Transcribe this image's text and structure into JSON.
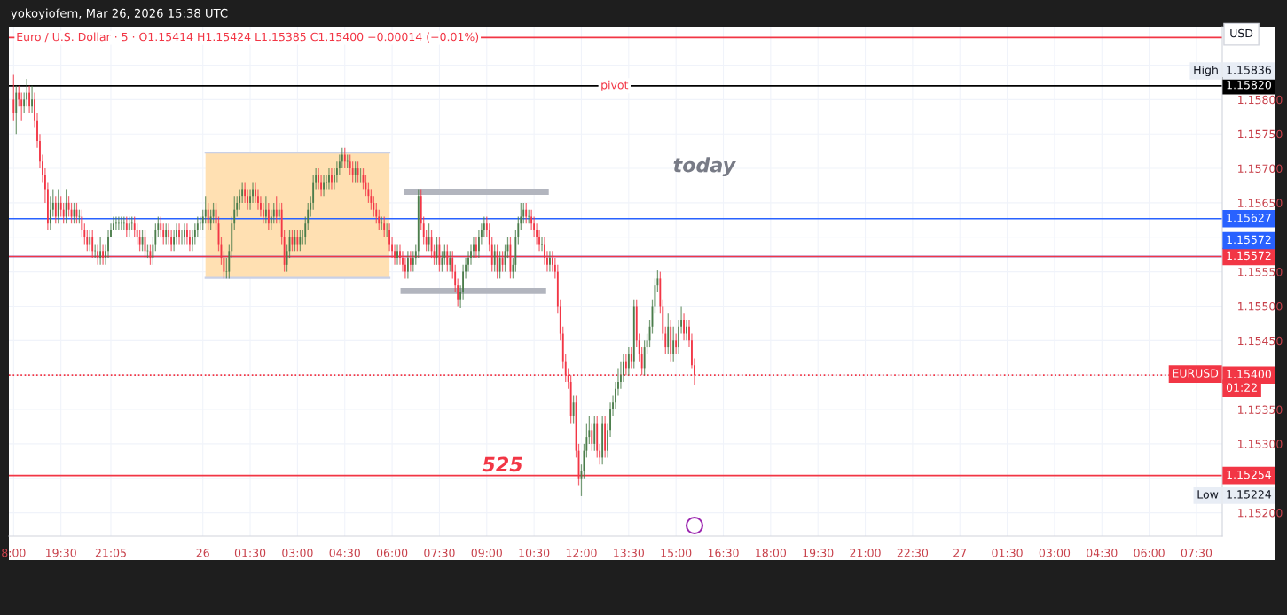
{
  "chart_data": {
    "type": "candlestick",
    "title": "Euro / U.S. Dollar · 5 · O1.15414 H1.15424 L1.15385 C1.15400 −0.00014 (−0.01%)",
    "subtitle": "yokoyiofem, Mar 26, 2026 15:38 UTC",
    "x": [
      "2026-03-25T18:00",
      "2026-03-25T18:05",
      "2026-03-25T18:10",
      "2026-03-25T18:15",
      "2026-03-25T18:20",
      "2026-03-25T18:25",
      "2026-03-25T18:30",
      "2026-03-25T18:35",
      "2026-03-25T18:40",
      "2026-03-25T18:45",
      "2026-03-25T18:50",
      "2026-03-25T18:55",
      "2026-03-25T19:00",
      "2026-03-25T19:05",
      "2026-03-25T19:10",
      "2026-03-25T19:15",
      "2026-03-25T19:20",
      "2026-03-25T19:25",
      "2026-03-25T19:30",
      "2026-03-25T19:35",
      "2026-03-25T19:40",
      "2026-03-25T19:45",
      "2026-03-25T19:50",
      "2026-03-25T19:55",
      "2026-03-25T20:00",
      "2026-03-25T20:05",
      "2026-03-25T20:10",
      "2026-03-25T20:15",
      "2026-03-25T20:20",
      "2026-03-25T20:25",
      "2026-03-25T20:30",
      "2026-03-25T20:35",
      "2026-03-25T20:40",
      "2026-03-25T20:45",
      "2026-03-25T20:50",
      "2026-03-25T20:55",
      "2026-03-25T21:00",
      "2026-03-25T21:05",
      "2026-03-25T21:10",
      "2026-03-25T21:15",
      "2026-03-25T21:20",
      "2026-03-25T21:25",
      "2026-03-25T21:30",
      "2026-03-25T21:35",
      "2026-03-25T21:40",
      "2026-03-25T21:45",
      "2026-03-25T21:50",
      "2026-03-25T21:55",
      "2026-03-25T22:00",
      "2026-03-25T22:05",
      "2026-03-25T22:10",
      "2026-03-25T22:15",
      "2026-03-25T22:20",
      "2026-03-25T22:25",
      "2026-03-25T22:30",
      "2026-03-25T22:35",
      "2026-03-25T22:40",
      "2026-03-25T22:45",
      "2026-03-25T22:50",
      "2026-03-25T22:55",
      "2026-03-25T23:00",
      "2026-03-25T23:05",
      "2026-03-25T23:10",
      "2026-03-25T23:15",
      "2026-03-25T23:20",
      "2026-03-25T23:25",
      "2026-03-25T23:30",
      "2026-03-25T23:35",
      "2026-03-25T23:40",
      "2026-03-25T23:45",
      "2026-03-25T23:50",
      "2026-03-25T23:55",
      "2026-03-26T00:00",
      "2026-03-26T00:05",
      "2026-03-26T00:10",
      "2026-03-26T00:15",
      "2026-03-26T00:20",
      "2026-03-26T00:25",
      "2026-03-26T00:30",
      "2026-03-26T00:35",
      "2026-03-26T00:40",
      "2026-03-26T00:45",
      "2026-03-26T00:50",
      "2026-03-26T00:55",
      "2026-03-26T01:00",
      "2026-03-26T01:05",
      "2026-03-26T01:10",
      "2026-03-26T01:15",
      "2026-03-26T01:20",
      "2026-03-26T01:25",
      "2026-03-26T01:30",
      "2026-03-26T01:35",
      "2026-03-26T01:40",
      "2026-03-26T01:45",
      "2026-03-26T01:50",
      "2026-03-26T01:55",
      "2026-03-26T02:00",
      "2026-03-26T02:05",
      "2026-03-26T02:10",
      "2026-03-26T02:15",
      "2026-03-26T02:20",
      "2026-03-26T02:25",
      "2026-03-26T02:30",
      "2026-03-26T02:35",
      "2026-03-26T02:40",
      "2026-03-26T02:45",
      "2026-03-26T02:50",
      "2026-03-26T02:55",
      "2026-03-26T03:00",
      "2026-03-26T03:05",
      "2026-03-26T03:10",
      "2026-03-26T03:15",
      "2026-03-26T03:20",
      "2026-03-26T03:25",
      "2026-03-26T03:30",
      "2026-03-26T03:35",
      "2026-03-26T03:40",
      "2026-03-26T03:45",
      "2026-03-26T03:50",
      "2026-03-26T03:55",
      "2026-03-26T04:00",
      "2026-03-26T04:05",
      "2026-03-26T04:10",
      "2026-03-26T04:15",
      "2026-03-26T04:20",
      "2026-03-26T04:25",
      "2026-03-26T04:30",
      "2026-03-26T04:35",
      "2026-03-26T04:40",
      "2026-03-26T04:45",
      "2026-03-26T04:50",
      "2026-03-26T04:55",
      "2026-03-26T05:00",
      "2026-03-26T05:05",
      "2026-03-26T05:10",
      "2026-03-26T05:15",
      "2026-03-26T05:20",
      "2026-03-26T05:25",
      "2026-03-26T05:30",
      "2026-03-26T05:35",
      "2026-03-26T05:40",
      "2026-03-26T05:45",
      "2026-03-26T05:50",
      "2026-03-26T05:55",
      "2026-03-26T06:00",
      "2026-03-26T06:05",
      "2026-03-26T06:10",
      "2026-03-26T06:15",
      "2026-03-26T06:20",
      "2026-03-26T06:25",
      "2026-03-26T06:30",
      "2026-03-26T06:35",
      "2026-03-26T06:40",
      "2026-03-26T06:45",
      "2026-03-26T06:50",
      "2026-03-26T06:55",
      "2026-03-26T07:00",
      "2026-03-26T07:05",
      "2026-03-26T07:10",
      "2026-03-26T07:15",
      "2026-03-26T07:20",
      "2026-03-26T07:25",
      "2026-03-26T07:30",
      "2026-03-26T07:35",
      "2026-03-26T07:40",
      "2026-03-26T07:45",
      "2026-03-26T07:50",
      "2026-03-26T07:55",
      "2026-03-26T08:00",
      "2026-03-26T08:05",
      "2026-03-26T08:10",
      "2026-03-26T08:15",
      "2026-03-26T08:20",
      "2026-03-26T08:25",
      "2026-03-26T08:30",
      "2026-03-26T08:35",
      "2026-03-26T08:40",
      "2026-03-26T08:45",
      "2026-03-26T08:50",
      "2026-03-26T08:55",
      "2026-03-26T09:00",
      "2026-03-26T09:05",
      "2026-03-26T09:10",
      "2026-03-26T09:15",
      "2026-03-26T09:20",
      "2026-03-26T09:25",
      "2026-03-26T09:30",
      "2026-03-26T09:35",
      "2026-03-26T09:40",
      "2026-03-26T09:45",
      "2026-03-26T09:50",
      "2026-03-26T09:55",
      "2026-03-26T10:00",
      "2026-03-26T10:05",
      "2026-03-26T10:10",
      "2026-03-26T10:15",
      "2026-03-26T10:20",
      "2026-03-26T10:25",
      "2026-03-26T10:30",
      "2026-03-26T10:35",
      "2026-03-26T10:40",
      "2026-03-26T10:45",
      "2026-03-26T10:50",
      "2026-03-26T10:55",
      "2026-03-26T11:00",
      "2026-03-26T11:05",
      "2026-03-26T11:10",
      "2026-03-26T11:15",
      "2026-03-26T11:20",
      "2026-03-26T11:25",
      "2026-03-26T11:30",
      "2026-03-26T11:35",
      "2026-03-26T11:40",
      "2026-03-26T11:45",
      "2026-03-26T11:50",
      "2026-03-26T11:55",
      "2026-03-26T12:00",
      "2026-03-26T12:05",
      "2026-03-26T12:10",
      "2026-03-26T12:15",
      "2026-03-26T12:20",
      "2026-03-26T12:25",
      "2026-03-26T12:30",
      "2026-03-26T12:35",
      "2026-03-26T12:40",
      "2026-03-26T12:45",
      "2026-03-26T12:50",
      "2026-03-26T12:55",
      "2026-03-26T13:00",
      "2026-03-26T13:05",
      "2026-03-26T13:10",
      "2026-03-26T13:15",
      "2026-03-26T13:20",
      "2026-03-26T13:25",
      "2026-03-26T13:30",
      "2026-03-26T13:35",
      "2026-03-26T13:40",
      "2026-03-26T13:45",
      "2026-03-26T13:50",
      "2026-03-26T13:55",
      "2026-03-26T14:00",
      "2026-03-26T14:05",
      "2026-03-26T14:10",
      "2026-03-26T14:15",
      "2026-03-26T14:20",
      "2026-03-26T14:25",
      "2026-03-26T14:30",
      "2026-03-26T14:35",
      "2026-03-26T14:40",
      "2026-03-26T14:45",
      "2026-03-26T14:50",
      "2026-03-26T14:55",
      "2026-03-26T15:00",
      "2026-03-26T15:05",
      "2026-03-26T15:10",
      "2026-03-26T15:15",
      "2026-03-26T15:20",
      "2026-03-26T15:25",
      "2026-03-26T15:30",
      "2026-03-26T15:35"
    ],
    "ohlc": [
      [
        1.158,
        1.15836,
        1.1577,
        1.1578
      ],
      [
        1.1578,
        1.1582,
        1.1575,
        1.1581
      ],
      [
        1.1581,
        1.1582,
        1.1579,
        1.158
      ],
      [
        1.158,
        1.1581,
        1.1577,
        1.1579
      ],
      [
        1.1579,
        1.1581,
        1.1578,
        1.158
      ],
      [
        1.158,
        1.1583,
        1.1579,
        1.1581
      ],
      [
        1.1581,
        1.1582,
        1.1578,
        1.1579
      ],
      [
        1.1579,
        1.1582,
        1.1578,
        1.158
      ],
      [
        1.158,
        1.1581,
        1.1576,
        1.1577
      ],
      [
        1.1577,
        1.1578,
        1.1573,
        1.1574
      ],
      [
        1.1574,
        1.1575,
        1.157,
        1.1571
      ],
      [
        1.1571,
        1.1572,
        1.1568,
        1.1569
      ],
      [
        1.1569,
        1.157,
        1.1565,
        1.1567
      ],
      [
        1.1567,
        1.1568,
        1.1561,
        1.1562
      ],
      [
        1.1562,
        1.1566,
        1.1561,
        1.1564
      ],
      [
        1.1564,
        1.1567,
        1.1563,
        1.1565
      ],
      [
        1.1565,
        1.1566,
        1.1562,
        1.1563
      ],
      [
        1.1563,
        1.1567,
        1.1562,
        1.1565
      ],
      [
        1.1565,
        1.1566,
        1.1563,
        1.1564
      ],
      [
        1.1564,
        1.1565,
        1.1562,
        1.1563
      ],
      [
        1.1563,
        1.1567,
        1.1562,
        1.1565
      ],
      [
        1.1565,
        1.1566,
        1.1563,
        1.1564
      ],
      [
        1.1564,
        1.1565,
        1.1562,
        1.1563
      ],
      [
        1.1563,
        1.1565,
        1.1562,
        1.1564
      ],
      [
        1.1564,
        1.1565,
        1.1562,
        1.1563
      ],
      [
        1.1563,
        1.1564,
        1.1562,
        1.1563
      ],
      [
        1.1563,
        1.1564,
        1.156,
        1.1561
      ],
      [
        1.1561,
        1.1562,
        1.1559,
        1.156
      ],
      [
        1.156,
        1.1561,
        1.1558,
        1.1559
      ],
      [
        1.1559,
        1.1561,
        1.1558,
        1.156
      ],
      [
        1.156,
        1.1561,
        1.1557,
        1.1558
      ],
      [
        1.1558,
        1.1559,
        1.1557,
        1.1558
      ],
      [
        1.1558,
        1.1559,
        1.1556,
        1.1557
      ],
      [
        1.1557,
        1.156,
        1.1556,
        1.1558
      ],
      [
        1.1558,
        1.1559,
        1.1556,
        1.1557
      ],
      [
        1.1557,
        1.1559,
        1.1556,
        1.1558
      ],
      [
        1.1558,
        1.1561,
        1.1557,
        1.156
      ],
      [
        1.156,
        1.1562,
        1.156,
        1.1561
      ],
      [
        1.1561,
        1.1563,
        1.1561,
        1.1562
      ],
      [
        1.1562,
        1.1563,
        1.1561,
        1.1562
      ],
      [
        1.1562,
        1.1563,
        1.1561,
        1.1562
      ],
      [
        1.1562,
        1.1563,
        1.1561,
        1.1562
      ],
      [
        1.1562,
        1.1563,
        1.1561,
        1.1562
      ],
      [
        1.1562,
        1.1563,
        1.156,
        1.1561
      ],
      [
        1.1561,
        1.1563,
        1.156,
        1.1562
      ],
      [
        1.1562,
        1.1563,
        1.1561,
        1.1562
      ],
      [
        1.1562,
        1.1563,
        1.156,
        1.1561
      ],
      [
        1.1561,
        1.1562,
        1.1559,
        1.156
      ],
      [
        1.156,
        1.1561,
        1.1558,
        1.1559
      ],
      [
        1.1559,
        1.1561,
        1.1558,
        1.156
      ],
      [
        1.156,
        1.1561,
        1.1557,
        1.1558
      ],
      [
        1.1558,
        1.1559,
        1.1557,
        1.1558
      ],
      [
        1.1558,
        1.1559,
        1.1556,
        1.1557
      ],
      [
        1.1557,
        1.156,
        1.1556,
        1.1559
      ],
      [
        1.1559,
        1.1562,
        1.1558,
        1.1561
      ],
      [
        1.1561,
        1.1563,
        1.156,
        1.1562
      ],
      [
        1.1562,
        1.1563,
        1.156,
        1.1561
      ],
      [
        1.1561,
        1.1562,
        1.1559,
        1.156
      ],
      [
        1.156,
        1.1562,
        1.1559,
        1.1561
      ],
      [
        1.1561,
        1.1562,
        1.1559,
        1.156
      ],
      [
        1.156,
        1.1561,
        1.1558,
        1.1559
      ],
      [
        1.1559,
        1.1561,
        1.1558,
        1.156
      ],
      [
        1.156,
        1.1562,
        1.1559,
        1.1561
      ],
      [
        1.1561,
        1.1562,
        1.1559,
        1.156
      ],
      [
        1.156,
        1.1561,
        1.1559,
        1.156
      ],
      [
        1.156,
        1.1562,
        1.1559,
        1.1561
      ],
      [
        1.1561,
        1.1562,
        1.1559,
        1.156
      ],
      [
        1.156,
        1.1561,
        1.1558,
        1.1559
      ],
      [
        1.1559,
        1.1561,
        1.1558,
        1.156
      ],
      [
        1.156,
        1.1562,
        1.1559,
        1.1561
      ],
      [
        1.1561,
        1.1563,
        1.156,
        1.1562
      ],
      [
        1.1562,
        1.1563,
        1.1561,
        1.1562
      ],
      [
        1.1562,
        1.1564,
        1.1561,
        1.1563
      ],
      [
        1.1563,
        1.1566,
        1.1562,
        1.1564
      ],
      [
        1.1564,
        1.1565,
        1.1561,
        1.1562
      ],
      [
        1.1562,
        1.1564,
        1.1561,
        1.1563
      ],
      [
        1.1563,
        1.1565,
        1.1562,
        1.1564
      ],
      [
        1.1564,
        1.1565,
        1.1561,
        1.1562
      ],
      [
        1.1562,
        1.1563,
        1.1558,
        1.1559
      ],
      [
        1.1559,
        1.156,
        1.1556,
        1.1557
      ],
      [
        1.1557,
        1.1558,
        1.1554,
        1.1555
      ],
      [
        1.1555,
        1.1557,
        1.1554,
        1.1555
      ],
      [
        1.1555,
        1.1559,
        1.1554,
        1.1558
      ],
      [
        1.1558,
        1.1563,
        1.1557,
        1.1562
      ],
      [
        1.1562,
        1.1566,
        1.1561,
        1.1564
      ],
      [
        1.1564,
        1.1566,
        1.1563,
        1.1565
      ],
      [
        1.1565,
        1.1567,
        1.1564,
        1.1566
      ],
      [
        1.1566,
        1.1568,
        1.1565,
        1.1567
      ],
      [
        1.1567,
        1.1568,
        1.1565,
        1.1566
      ],
      [
        1.1566,
        1.1567,
        1.1564,
        1.1565
      ],
      [
        1.1565,
        1.1567,
        1.1564,
        1.1566
      ],
      [
        1.1566,
        1.1568,
        1.1565,
        1.1567
      ],
      [
        1.1567,
        1.1568,
        1.1565,
        1.1566
      ],
      [
        1.1566,
        1.1567,
        1.1564,
        1.1565
      ],
      [
        1.1565,
        1.1566,
        1.1563,
        1.1564
      ],
      [
        1.1564,
        1.1565,
        1.1562,
        1.1563
      ],
      [
        1.1563,
        1.1566,
        1.1562,
        1.1564
      ],
      [
        1.1564,
        1.1565,
        1.1561,
        1.1562
      ],
      [
        1.1562,
        1.1564,
        1.1561,
        1.1563
      ],
      [
        1.1563,
        1.1565,
        1.1562,
        1.1564
      ],
      [
        1.1564,
        1.1566,
        1.1562,
        1.1563
      ],
      [
        1.1563,
        1.1565,
        1.1562,
        1.1564
      ],
      [
        1.1564,
        1.1565,
        1.1559,
        1.156
      ],
      [
        1.156,
        1.1561,
        1.1555,
        1.1556
      ],
      [
        1.1556,
        1.1559,
        1.1555,
        1.1558
      ],
      [
        1.1558,
        1.1561,
        1.1557,
        1.156
      ],
      [
        1.156,
        1.1561,
        1.1558,
        1.1559
      ],
      [
        1.1559,
        1.1561,
        1.1558,
        1.156
      ],
      [
        1.156,
        1.1561,
        1.1558,
        1.1559
      ],
      [
        1.1559,
        1.1561,
        1.1558,
        1.156
      ],
      [
        1.156,
        1.1561,
        1.1559,
        1.156
      ],
      [
        1.156,
        1.1563,
        1.1559,
        1.1562
      ],
      [
        1.1562,
        1.1565,
        1.1561,
        1.1564
      ],
      [
        1.1564,
        1.1566,
        1.1563,
        1.1565
      ],
      [
        1.1565,
        1.1569,
        1.1564,
        1.1568
      ],
      [
        1.1568,
        1.157,
        1.1567,
        1.1569
      ],
      [
        1.1569,
        1.157,
        1.1567,
        1.1568
      ],
      [
        1.1568,
        1.1569,
        1.1566,
        1.1567
      ],
      [
        1.1567,
        1.1569,
        1.1566,
        1.1568
      ],
      [
        1.1568,
        1.1569,
        1.1567,
        1.1568
      ],
      [
        1.1568,
        1.157,
        1.1567,
        1.1569
      ],
      [
        1.1569,
        1.157,
        1.1567,
        1.1568
      ],
      [
        1.1568,
        1.157,
        1.1567,
        1.1569
      ],
      [
        1.1569,
        1.1571,
        1.1568,
        1.157
      ],
      [
        1.157,
        1.1572,
        1.1569,
        1.1571
      ],
      [
        1.1571,
        1.1573,
        1.157,
        1.1572
      ],
      [
        1.1572,
        1.1573,
        1.157,
        1.1571
      ],
      [
        1.1571,
        1.1572,
        1.157,
        1.1571
      ],
      [
        1.1571,
        1.1572,
        1.1569,
        1.157
      ],
      [
        1.157,
        1.1571,
        1.1568,
        1.1569
      ],
      [
        1.1569,
        1.1571,
        1.1568,
        1.157
      ],
      [
        1.157,
        1.1571,
        1.1568,
        1.1569
      ],
      [
        1.1569,
        1.157,
        1.1568,
        1.1569
      ],
      [
        1.1569,
        1.157,
        1.1567,
        1.1568
      ],
      [
        1.1568,
        1.1569,
        1.1566,
        1.1567
      ],
      [
        1.1567,
        1.1568,
        1.1565,
        1.1566
      ],
      [
        1.1566,
        1.1567,
        1.1564,
        1.1565
      ],
      [
        1.1565,
        1.1566,
        1.1563,
        1.1564
      ],
      [
        1.1564,
        1.1565,
        1.1562,
        1.1563
      ],
      [
        1.1563,
        1.1564,
        1.1561,
        1.1562
      ],
      [
        1.1562,
        1.1563,
        1.1561,
        1.1562
      ],
      [
        1.1562,
        1.1563,
        1.156,
        1.1561
      ],
      [
        1.1561,
        1.1562,
        1.156,
        1.1561
      ],
      [
        1.1561,
        1.1562,
        1.1558,
        1.1559
      ],
      [
        1.1559,
        1.156,
        1.1557,
        1.1558
      ],
      [
        1.1558,
        1.1559,
        1.1556,
        1.1557
      ],
      [
        1.1557,
        1.1559,
        1.1556,
        1.1558
      ],
      [
        1.1558,
        1.1559,
        1.1556,
        1.1557
      ],
      [
        1.1557,
        1.1558,
        1.1555,
        1.1556
      ],
      [
        1.1556,
        1.1557,
        1.1554,
        1.1555
      ],
      [
        1.1555,
        1.1558,
        1.1554,
        1.1557
      ],
      [
        1.1557,
        1.1558,
        1.1555,
        1.1556
      ],
      [
        1.1556,
        1.1558,
        1.1555,
        1.1557
      ],
      [
        1.1557,
        1.1559,
        1.1556,
        1.1558
      ],
      [
        1.1558,
        1.1567,
        1.1557,
        1.1566
      ],
      [
        1.1566,
        1.1567,
        1.1561,
        1.1562
      ],
      [
        1.1562,
        1.1563,
        1.1559,
        1.156
      ],
      [
        1.156,
        1.1561,
        1.1558,
        1.1559
      ],
      [
        1.1559,
        1.1562,
        1.1558,
        1.156
      ],
      [
        1.156,
        1.1561,
        1.1557,
        1.1558
      ],
      [
        1.1558,
        1.1559,
        1.1556,
        1.1557
      ],
      [
        1.1557,
        1.156,
        1.1556,
        1.1559
      ],
      [
        1.1559,
        1.156,
        1.1555,
        1.1556
      ],
      [
        1.1556,
        1.1558,
        1.1555,
        1.1557
      ],
      [
        1.1557,
        1.1559,
        1.1556,
        1.1558
      ],
      [
        1.1558,
        1.1559,
        1.1555,
        1.1556
      ],
      [
        1.1556,
        1.1558,
        1.1555,
        1.1557
      ],
      [
        1.1557,
        1.1558,
        1.1554,
        1.1555
      ],
      [
        1.1555,
        1.1556,
        1.1552,
        1.1553
      ],
      [
        1.1553,
        1.1554,
        1.155,
        1.1551
      ],
      [
        1.1551,
        1.1553,
        1.15497,
        1.1552
      ],
      [
        1.1552,
        1.1556,
        1.1551,
        1.1555
      ],
      [
        1.1555,
        1.1557,
        1.1554,
        1.1556
      ],
      [
        1.1556,
        1.1558,
        1.1555,
        1.1557
      ],
      [
        1.1557,
        1.1559,
        1.1556,
        1.1558
      ],
      [
        1.1558,
        1.156,
        1.1557,
        1.1559
      ],
      [
        1.1559,
        1.156,
        1.1557,
        1.1558
      ],
      [
        1.1558,
        1.1561,
        1.1557,
        1.156
      ],
      [
        1.156,
        1.1562,
        1.1559,
        1.1561
      ],
      [
        1.1561,
        1.1563,
        1.156,
        1.1562
      ],
      [
        1.1562,
        1.1563,
        1.156,
        1.1561
      ],
      [
        1.1561,
        1.1562,
        1.1558,
        1.1559
      ],
      [
        1.1559,
        1.156,
        1.1555,
        1.1556
      ],
      [
        1.1556,
        1.1559,
        1.1555,
        1.1558
      ],
      [
        1.1558,
        1.1559,
        1.1554,
        1.1555
      ],
      [
        1.1555,
        1.1558,
        1.1554,
        1.1557
      ],
      [
        1.1557,
        1.1558,
        1.1555,
        1.1556
      ],
      [
        1.1556,
        1.1559,
        1.1555,
        1.1558
      ],
      [
        1.1558,
        1.156,
        1.1557,
        1.1559
      ],
      [
        1.1559,
        1.156,
        1.1554,
        1.1555
      ],
      [
        1.1555,
        1.1557,
        1.1554,
        1.1556
      ],
      [
        1.1556,
        1.1561,
        1.1555,
        1.156
      ],
      [
        1.156,
        1.1563,
        1.1559,
        1.1562
      ],
      [
        1.1562,
        1.1565,
        1.1561,
        1.1563
      ],
      [
        1.1563,
        1.1565,
        1.1562,
        1.1564
      ],
      [
        1.1564,
        1.1565,
        1.1562,
        1.1563
      ],
      [
        1.1563,
        1.1564,
        1.1562,
        1.1563
      ],
      [
        1.1563,
        1.1564,
        1.1561,
        1.1562
      ],
      [
        1.1562,
        1.1563,
        1.156,
        1.1561
      ],
      [
        1.1561,
        1.1562,
        1.1559,
        1.156
      ],
      [
        1.156,
        1.1561,
        1.1558,
        1.1559
      ],
      [
        1.1559,
        1.156,
        1.1558,
        1.1559
      ],
      [
        1.1559,
        1.156,
        1.1556,
        1.1557
      ],
      [
        1.1557,
        1.1558,
        1.1555,
        1.1556
      ],
      [
        1.1556,
        1.1558,
        1.1555,
        1.1557
      ],
      [
        1.1557,
        1.1558,
        1.1555,
        1.1556
      ],
      [
        1.1556,
        1.1557,
        1.1554,
        1.1555
      ],
      [
        1.1555,
        1.1556,
        1.1549,
        1.155
      ],
      [
        1.155,
        1.1551,
        1.1545,
        1.1546
      ],
      [
        1.1546,
        1.1547,
        1.1541,
        1.1542
      ],
      [
        1.1542,
        1.1543,
        1.1539,
        1.154
      ],
      [
        1.154,
        1.1541,
        1.1538,
        1.1539
      ],
      [
        1.1539,
        1.154,
        1.1533,
        1.1534
      ],
      [
        1.1534,
        1.1537,
        1.1533,
        1.1536
      ],
      [
        1.1536,
        1.1537,
        1.1528,
        1.1529
      ],
      [
        1.1529,
        1.153,
        1.1524,
        1.1525
      ],
      [
        1.1525,
        1.1527,
        1.15224,
        1.1526
      ],
      [
        1.1526,
        1.153,
        1.1525,
        1.1529
      ],
      [
        1.1529,
        1.1533,
        1.1528,
        1.1531
      ],
      [
        1.1531,
        1.1534,
        1.153,
        1.1532
      ],
      [
        1.1532,
        1.1533,
        1.1529,
        1.153
      ],
      [
        1.153,
        1.1534,
        1.1529,
        1.1533
      ],
      [
        1.1533,
        1.1534,
        1.1528,
        1.1529
      ],
      [
        1.1529,
        1.153,
        1.1527,
        1.1528
      ],
      [
        1.1528,
        1.1534,
        1.1527,
        1.1533
      ],
      [
        1.1533,
        1.1534,
        1.1528,
        1.1529
      ],
      [
        1.1529,
        1.1533,
        1.1528,
        1.1532
      ],
      [
        1.1532,
        1.1536,
        1.1531,
        1.1535
      ],
      [
        1.1535,
        1.1537,
        1.1534,
        1.1536
      ],
      [
        1.1536,
        1.1539,
        1.1535,
        1.1538
      ],
      [
        1.1538,
        1.1541,
        1.1537,
        1.1539
      ],
      [
        1.1539,
        1.1542,
        1.1538,
        1.154
      ],
      [
        1.154,
        1.1543,
        1.1539,
        1.1542
      ],
      [
        1.1542,
        1.1543,
        1.154,
        1.1541
      ],
      [
        1.1541,
        1.1544,
        1.154,
        1.1543
      ],
      [
        1.1543,
        1.1544,
        1.1541,
        1.1542
      ],
      [
        1.1542,
        1.1551,
        1.1541,
        1.155
      ],
      [
        1.155,
        1.1551,
        1.1544,
        1.1545
      ],
      [
        1.1545,
        1.1546,
        1.1542,
        1.1543
      ],
      [
        1.1543,
        1.1544,
        1.154,
        1.1541
      ],
      [
        1.1541,
        1.1545,
        1.154,
        1.1544
      ],
      [
        1.1544,
        1.1546,
        1.1543,
        1.1545
      ],
      [
        1.1545,
        1.1548,
        1.1544,
        1.1547
      ],
      [
        1.1547,
        1.1551,
        1.1546,
        1.155
      ],
      [
        1.155,
        1.1554,
        1.1549,
        1.1553
      ],
      [
        1.1553,
        1.15552,
        1.1552,
        1.1554
      ],
      [
        1.1554,
        1.1555,
        1.1549,
        1.155
      ],
      [
        1.155,
        1.1551,
        1.1545,
        1.1546
      ],
      [
        1.1546,
        1.1547,
        1.1543,
        1.1544
      ],
      [
        1.1544,
        1.1549,
        1.1543,
        1.1547
      ],
      [
        1.1547,
        1.1548,
        1.1542,
        1.1543
      ],
      [
        1.1543,
        1.1547,
        1.1542,
        1.1545
      ],
      [
        1.1545,
        1.1546,
        1.1543,
        1.1544
      ],
      [
        1.1544,
        1.1548,
        1.1543,
        1.1547
      ],
      [
        1.1547,
        1.155,
        1.1546,
        1.1548
      ],
      [
        1.1548,
        1.1549,
        1.1545,
        1.1546
      ],
      [
        1.1546,
        1.1548,
        1.1545,
        1.1547
      ],
      [
        1.1547,
        1.1548,
        1.1544,
        1.1545
      ],
      [
        1.1545,
        1.1546,
        1.1541,
        1.15414
      ],
      [
        1.15414,
        1.15424,
        1.15385,
        1.154
      ]
    ],
    "series": [
      {
        "type": "line",
        "color": "#c9d0e6",
        "x": [
          "2026-03-26T00:05",
          "2026-03-26T05:55"
        ],
        "values": [
          1.15723,
          1.15723
        ]
      },
      {
        "type": "line",
        "color": "#c9d0e6",
        "x": [
          "2026-03-26T00:05",
          "2026-03-26T05:55"
        ],
        "values": [
          1.15541,
          1.15541
        ]
      },
      {
        "type": "line",
        "color": "#b2b5be",
        "x": [
          "2026-03-26T06:22",
          "2026-03-26T10:58"
        ],
        "values": [
          1.15666,
          1.15666
        ]
      },
      {
        "type": "line",
        "color": "#b2b5be",
        "x": [
          "2026-03-26T06:16",
          "2026-03-26T10:53"
        ],
        "values": [
          1.15522,
          1.15522
        ]
      }
    ],
    "ref_lines": [
      {
        "axis": "y",
        "value": 1.1589,
        "color": "#f23645",
        "line_style": "solid"
      },
      {
        "axis": "y",
        "value": 1.1582,
        "label": "1.15820",
        "color": "#000000",
        "line_style": "solid"
      },
      {
        "axis": "y",
        "value": 1.15627,
        "label": "1.15627",
        "color": "#2962ff",
        "line_style": "solid"
      },
      {
        "axis": "y",
        "value": 1.15572,
        "label": "1.15572",
        "color": "#f23645",
        "line_style": "solid"
      },
      {
        "axis": "y",
        "value": 1.15572,
        "label": "1.15572",
        "color": "#2962ff",
        "line_style": "solid"
      },
      {
        "axis": "y",
        "value": 1.15254,
        "label": "1.15254",
        "color": "#f23645",
        "line_style": "solid"
      },
      {
        "axis": "y",
        "value": 1.154,
        "label": "1.15400",
        "color": "#f23645",
        "line_style": "dotted"
      }
    ],
    "annotations": [
      "USD",
      "today",
      "High",
      "1.15836",
      "Low",
      "1.15224",
      "EURUSD",
      "01:22",
      {
        "text": "pivot",
        "x": "2026-03-26T13:03",
        "y": 1.1582
      },
      {
        "text": "525",
        "x": "2026-03-26T09:30",
        "y": 1.15254
      }
    ],
    "xlim": [
      "2026-03-25T17:51",
      "2026-03-27T08:19"
    ],
    "xticks": [
      {
        "value": "2026-03-25T18:00",
        "label": "8:00"
      },
      {
        "value": "2026-03-25T19:30",
        "label": "19:30"
      },
      {
        "value": "2026-03-25T21:05",
        "label": "21:05"
      },
      {
        "value": "2026-03-26T00:00",
        "label": "26"
      },
      {
        "value": "2026-03-26T01:30",
        "label": "01:30"
      },
      {
        "value": "2026-03-26T03:00",
        "label": "03:00"
      },
      {
        "value": "2026-03-26T04:30",
        "label": "04:30"
      },
      {
        "value": "2026-03-26T06:00",
        "label": "06:00"
      },
      {
        "value": "2026-03-26T07:30",
        "label": "07:30"
      },
      {
        "value": "2026-03-26T09:00",
        "label": "09:00"
      },
      {
        "value": "2026-03-26T10:30",
        "label": "10:30"
      },
      {
        "value": "2026-03-26T12:00",
        "label": "12:00"
      },
      {
        "value": "2026-03-26T13:30",
        "label": "13:30"
      },
      {
        "value": "2026-03-26T15:00",
        "label": "15:00"
      },
      {
        "value": "2026-03-26T16:30",
        "label": "16:30"
      },
      {
        "value": "2026-03-26T18:00",
        "label": "18:00"
      },
      {
        "value": "2026-03-26T19:30",
        "label": "19:30"
      },
      {
        "value": "2026-03-26T21:00",
        "label": "21:00"
      },
      {
        "value": "2026-03-26T22:30",
        "label": "22:30"
      },
      {
        "value": "2026-03-27T00:00",
        "label": "27"
      },
      {
        "value": "2026-03-27T01:30",
        "label": "01:30"
      },
      {
        "value": "2026-03-27T03:00",
        "label": "03:00"
      },
      {
        "value": "2026-03-27T04:30",
        "label": "04:30"
      },
      {
        "value": "2026-03-27T06:00",
        "label": "06:00"
      },
      {
        "value": "2026-03-27T07:30",
        "label": "07:30"
      }
    ],
    "ylim": [
      1.15166,
      1.15906
    ],
    "yticks": [
      {
        "value": 1.152,
        "label": "1.15200"
      },
      {
        "value": 1.1525,
        "label": null
      },
      {
        "value": 1.153,
        "label": "1.15300"
      },
      {
        "value": 1.1535,
        "label": "1.15350"
      },
      {
        "value": 1.154,
        "label": null
      },
      {
        "value": 1.1545,
        "label": "1.15450"
      },
      {
        "value": 1.155,
        "label": "1.15500"
      },
      {
        "value": 1.1555,
        "label": "1.15550"
      },
      {
        "value": 1.156,
        "label": null
      },
      {
        "value": 1.1565,
        "label": "1.15650"
      },
      {
        "value": 1.157,
        "label": "1.15700"
      },
      {
        "value": 1.1575,
        "label": "1.15750"
      },
      {
        "value": 1.158,
        "label": "1.15800"
      },
      {
        "value": 1.1585,
        "label": null
      }
    ],
    "grid": true
  }
}
